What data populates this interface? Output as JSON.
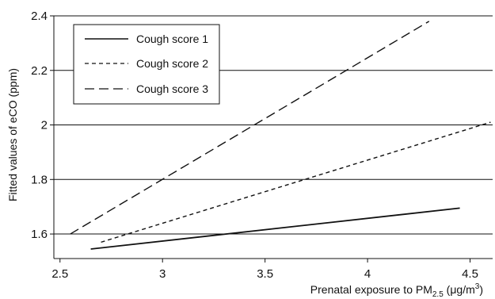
{
  "chart_data": {
    "type": "line",
    "xlabel": "Prenatal exposure to PM",
    "xlabel_sub": "2.5",
    "xlabel_unit_prefix": " (",
    "xlabel_unit_mu": "μ",
    "xlabel_unit_mid": "g/m",
    "xlabel_unit_sup": "3",
    "xlabel_unit_suffix": ")",
    "ylabel": "Fitted values of eCO (ppm)",
    "xlim": [
      2.47,
      4.61
    ],
    "ylim": [
      1.51,
      2.4
    ],
    "x_ticks": [
      2.5,
      3,
      3.5,
      4,
      4.5
    ],
    "x_tick_labels": [
      "2.5",
      "3",
      "3.5",
      "4",
      "4.5"
    ],
    "y_ticks": [
      1.6,
      1.8,
      2,
      2.2,
      2.4
    ],
    "y_tick_labels": [
      "1.6",
      "1.8",
      "2",
      "2.2",
      "2.4"
    ],
    "grid": "horizontal",
    "legend_position": "top-left",
    "series": [
      {
        "name": "Cough score 1",
        "style": "solid",
        "x": [
          2.65,
          4.45
        ],
        "y": [
          1.545,
          1.695
        ]
      },
      {
        "name": "Cough score 2",
        "style": "short-dash",
        "x": [
          2.7,
          4.6
        ],
        "y": [
          1.57,
          2.01
        ]
      },
      {
        "name": "Cough score 3",
        "style": "long-dash",
        "x": [
          2.55,
          4.3
        ],
        "y": [
          1.6,
          2.38
        ]
      }
    ],
    "colors": {
      "line": "#111111",
      "grid": "#111111",
      "background": "#ffffff"
    }
  }
}
